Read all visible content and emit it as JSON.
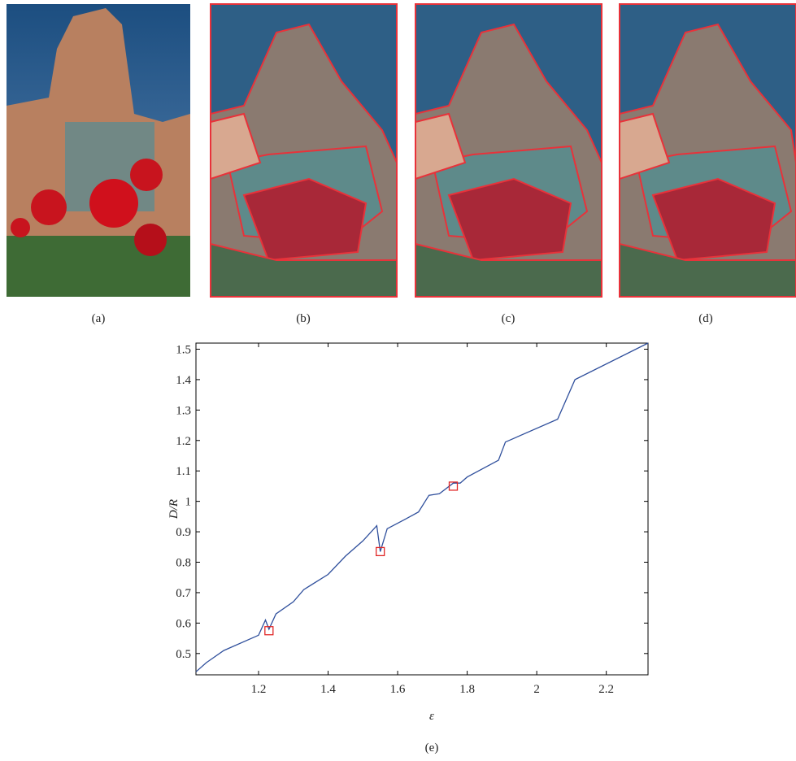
{
  "panels": [
    {
      "caption": "(a)"
    },
    {
      "caption": "(b)"
    },
    {
      "caption": "(c)"
    },
    {
      "caption": "(d)"
    }
  ],
  "chart_data": {
    "type": "line",
    "caption": "(e)",
    "x_label": "ε",
    "y_label": "D/R",
    "x": [
      1.02,
      1.05,
      1.1,
      1.2,
      1.22,
      1.23,
      1.25,
      1.3,
      1.33,
      1.4,
      1.45,
      1.5,
      1.54,
      1.55,
      1.57,
      1.62,
      1.66,
      1.69,
      1.72,
      1.76,
      1.78,
      1.8,
      1.89,
      1.91,
      2.06,
      2.11,
      2.32
    ],
    "series": [
      {
        "color": "#2f4f9c",
        "values": [
          0.44,
          0.47,
          0.51,
          0.56,
          0.61,
          0.58,
          0.63,
          0.67,
          0.71,
          0.76,
          0.82,
          0.87,
          0.92,
          0.835,
          0.91,
          0.94,
          0.965,
          1.02,
          1.025,
          1.06,
          1.06,
          1.08,
          1.135,
          1.195,
          1.27,
          1.4,
          1.52
        ]
      }
    ],
    "markers": {
      "color": "#e02828",
      "x": [
        1.23,
        1.55,
        1.76
      ],
      "values": [
        0.575,
        0.835,
        1.05
      ]
    },
    "xlim": [
      1.02,
      2.32
    ],
    "ylim": [
      0.43,
      1.52
    ],
    "xticks": [
      1.2,
      1.4,
      1.6,
      1.8,
      2,
      2.2
    ],
    "yticks": [
      0.5,
      0.6,
      0.7,
      0.8,
      0.9,
      1,
      1.1,
      1.2,
      1.3,
      1.4,
      1.5
    ]
  }
}
